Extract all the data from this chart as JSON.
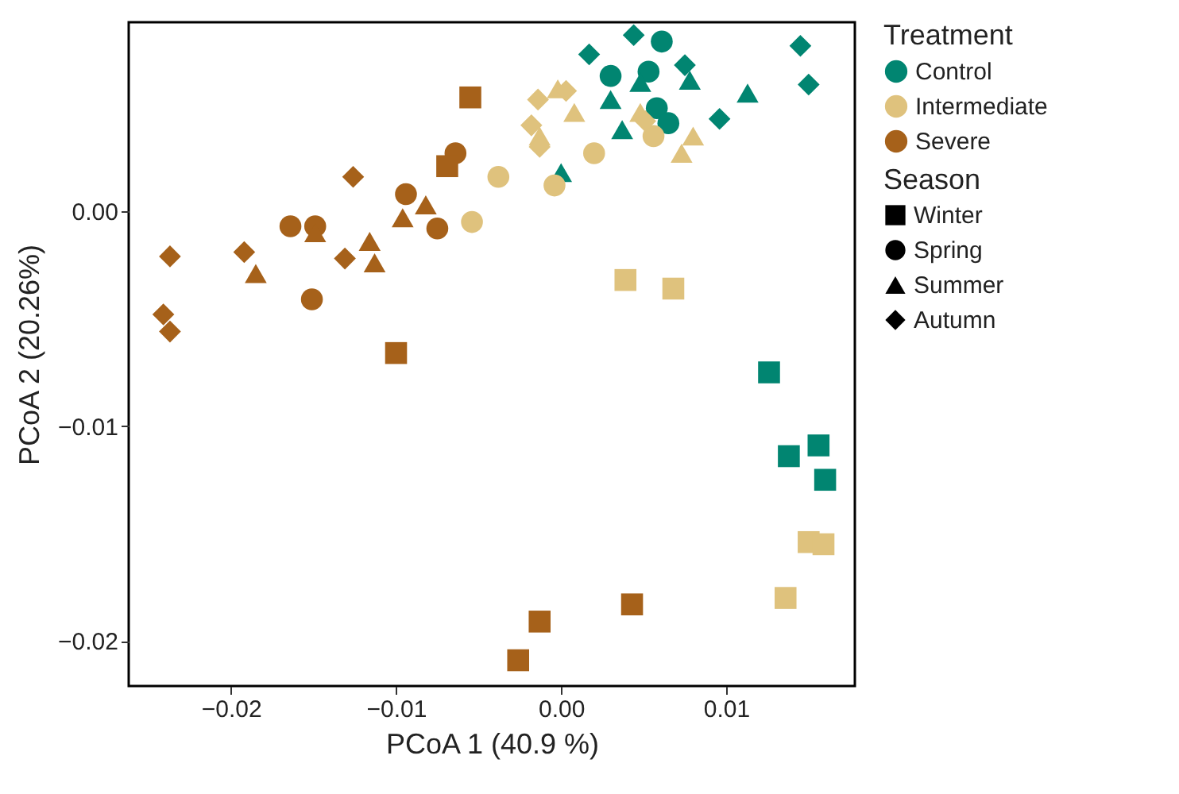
{
  "chart_data": {
    "type": "scatter",
    "xlabel": "PCoA 1 (40.9 %)",
    "ylabel": "PCoA 2 (20.26%)",
    "legend_title": "Treatment",
    "legend": "right",
    "grid": false,
    "xlim": [
      -0.0262,
      0.0178
    ],
    "ylim": [
      -0.0221,
      0.0088
    ],
    "xticks": [
      {
        "value": -0.02,
        "label": "−0.02"
      },
      {
        "value": -0.01,
        "label": "−0.01"
      },
      {
        "value": 0,
        "label": "0.00"
      },
      {
        "value": 0.01,
        "label": "0.01"
      }
    ],
    "yticks": [
      {
        "value": -0.02,
        "label": "−0.02"
      },
      {
        "value": -0.01,
        "label": "−0.01"
      },
      {
        "value": 0,
        "label": "0.00"
      }
    ],
    "annotations": [
      "Season",
      "Winter",
      "Spring",
      "Summer",
      "Autumn"
    ],
    "series": [
      {
        "name": "Control",
        "color": "#018571",
        "marker": "circle",
        "x": [
          0.003,
          0.0061,
          0.0053,
          0.0058,
          0.0065
        ],
        "values": [
          0.0063,
          0.0079,
          0.0065,
          0.0048,
          0.0041
        ]
      },
      {
        "color": "#018571",
        "marker": "square",
        "x": [
          0.0126,
          0.0138,
          0.0156,
          0.016
        ],
        "values": [
          -0.0075,
          -0.0114,
          -0.0109,
          -0.0125
        ]
      },
      {
        "color": "#018571",
        "marker": "triangle",
        "x": [
          0.0113,
          0.0078,
          0.0037,
          0.0,
          0.0048,
          0.003
        ],
        "values": [
          0.0055,
          0.0061,
          0.0038,
          0.0018,
          0.006,
          0.0052
        ]
      },
      {
        "color": "#018571",
        "marker": "diamond",
        "x": [
          0.0017,
          0.0044,
          0.0075,
          0.0096,
          0.0145,
          0.015
        ],
        "values": [
          0.0073,
          0.0082,
          0.0068,
          0.0043,
          0.0077,
          0.0059
        ]
      },
      {
        "name": "Intermediate",
        "color": "#dfc27d",
        "marker": "circle",
        "x": [
          -0.0038,
          -0.0054,
          0.002,
          -0.0004,
          0.0056
        ],
        "values": [
          0.0016,
          -0.0005,
          0.0027,
          0.0012,
          0.0035
        ]
      },
      {
        "color": "#dfc27d",
        "marker": "square",
        "x": [
          0.0039,
          0.0068,
          0.015,
          0.0159,
          0.0136
        ],
        "values": [
          -0.0032,
          -0.0036,
          -0.0154,
          -0.0155,
          -0.018
        ]
      },
      {
        "color": "#dfc27d",
        "marker": "triangle",
        "x": [
          0.0008,
          0.0073,
          0.008,
          -0.0002,
          0.0048,
          -0.0013
        ],
        "values": [
          0.0046,
          0.0027,
          0.0035,
          0.0057,
          0.0046,
          0.0035
        ]
      },
      {
        "color": "#dfc27d",
        "marker": "diamond",
        "x": [
          -0.0014,
          0.0003,
          -0.0013,
          0.0051,
          -0.0018
        ],
        "values": [
          0.0052,
          0.0056,
          0.003,
          0.0042,
          0.004
        ]
      },
      {
        "name": "Severe",
        "color": "#a6611a",
        "marker": "circle",
        "x": [
          -0.0064,
          -0.0094,
          -0.0075,
          -0.0164,
          -0.0149,
          -0.0151
        ],
        "values": [
          0.0027,
          0.0008,
          -0.0008,
          -0.0007,
          -0.0007,
          -0.0041
        ]
      },
      {
        "color": "#a6611a",
        "marker": "square",
        "x": [
          -0.0055,
          -0.0069,
          -0.01,
          -0.0026,
          -0.0013,
          0.0043
        ],
        "values": [
          0.0053,
          0.0021,
          -0.0066,
          -0.0209,
          -0.0191,
          -0.0183
        ]
      },
      {
        "color": "#a6611a",
        "marker": "triangle",
        "x": [
          -0.0082,
          -0.0096,
          -0.0149,
          -0.0116,
          -0.0113,
          -0.0185
        ],
        "values": [
          0.0003,
          -0.0003,
          -0.001,
          -0.0014,
          -0.0024,
          -0.0029
        ]
      },
      {
        "color": "#a6611a",
        "marker": "diamond",
        "x": [
          -0.0126,
          -0.0237,
          -0.0192,
          -0.0131,
          -0.0241,
          -0.0237
        ],
        "values": [
          0.0016,
          -0.0021,
          -0.0019,
          -0.0022,
          -0.0048,
          -0.0056
        ]
      }
    ]
  }
}
